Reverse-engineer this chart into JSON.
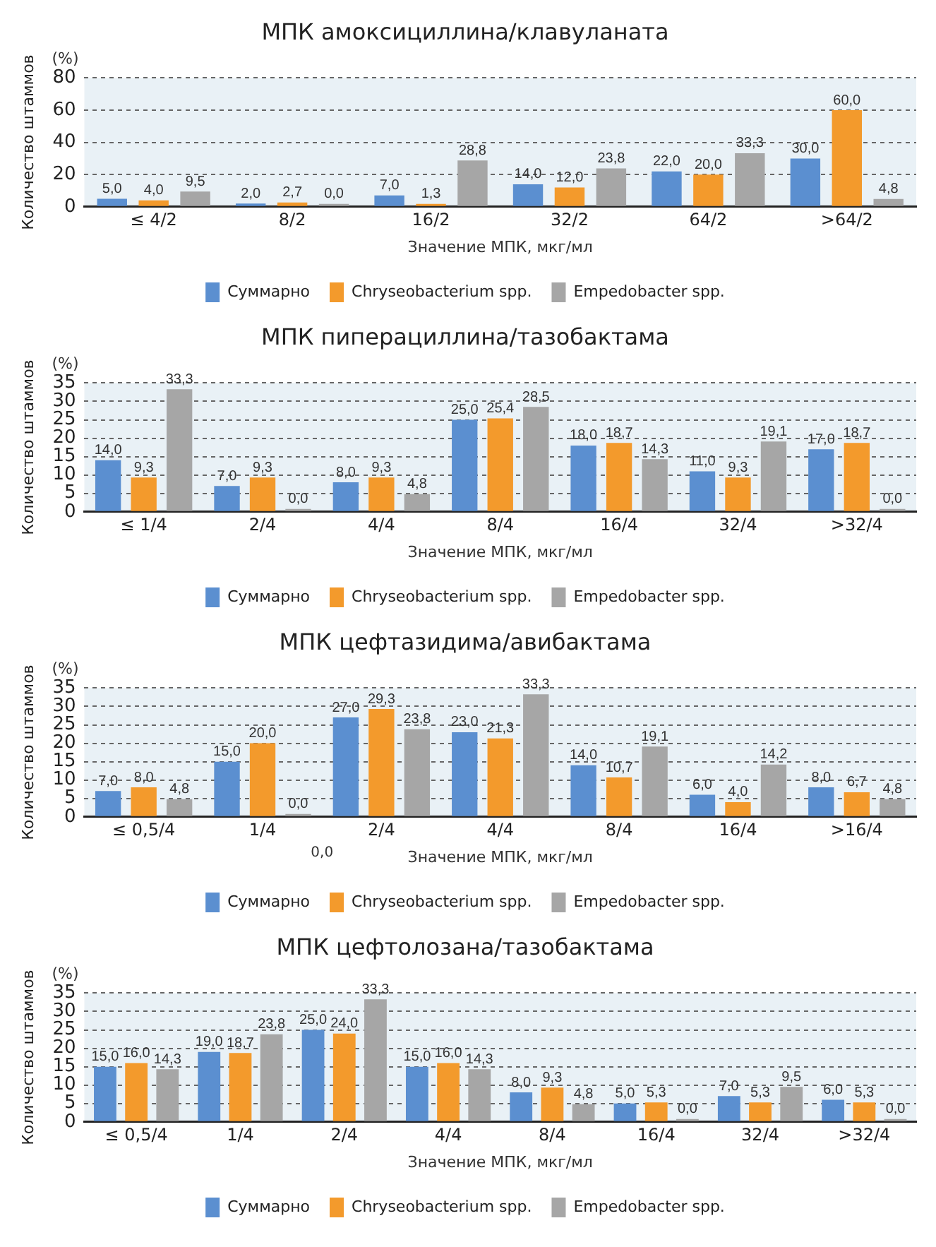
{
  "chart_data": [
    {
      "type": "bar",
      "title": "МПК амоксициллина/клавуланата",
      "xlabel": "Значение МПК, мкг/мл",
      "ylabel": "Количество штаммов",
      "annotations": [
        "(%)"
      ],
      "categories": [
        "≤ 4/2",
        "8/2",
        "16/2",
        "32/2",
        "64/2",
        ">64/2"
      ],
      "series": [
        {
          "name": "Суммарно",
          "color": "#5b8fd0",
          "values": [
            5,
            2,
            7,
            14,
            22,
            30
          ],
          "value_labels": [
            "5,0",
            "2,0",
            "7,0",
            "14,0",
            "22,0",
            "30,0"
          ]
        },
        {
          "name": "Chryseobacterium spp.",
          "color": "#f39a2c",
          "values": [
            4,
            2.7,
            1.3,
            12,
            20,
            60
          ],
          "value_labels": [
            "4,0",
            "2,7",
            "1,3",
            "12,0",
            "20,0",
            "60,0"
          ]
        },
        {
          "name": "Empedobacter spp.",
          "color": "#a6a6a6",
          "values": [
            9.5,
            0,
            28.8,
            23.8,
            33.3,
            4.8
          ],
          "value_labels": [
            "9,5",
            "0,0",
            "28,8",
            "23,8",
            "33,3",
            "4,8"
          ]
        }
      ],
      "ylim": [
        0,
        80
      ],
      "yticks": [
        0,
        20,
        40,
        60,
        80
      ],
      "grid": "y",
      "legend": "bottom"
    },
    {
      "type": "bar",
      "title": "МПК пиперациллина/тазобактама",
      "xlabel": "Значение МПК, мкг/мл",
      "ylabel": "Количество штаммов",
      "annotations": [
        "(%)"
      ],
      "categories": [
        "≤ 1/4",
        "2/4",
        "4/4",
        "8/4",
        "16/4",
        "32/4",
        ">32/4"
      ],
      "series": [
        {
          "name": "Суммарно",
          "color": "#5b8fd0",
          "values": [
            14,
            7,
            8,
            25,
            18,
            11,
            17
          ],
          "value_labels": [
            "14,0",
            "7,0",
            "8,0",
            "25,0",
            "18,0",
            "11,0",
            "17,0"
          ]
        },
        {
          "name": "Chryseobacterium spp.",
          "color": "#f39a2c",
          "values": [
            9.3,
            9.3,
            9.3,
            25.4,
            18.7,
            9.3,
            18.7
          ],
          "value_labels": [
            "9,3",
            "9,3",
            "9,3",
            "25,4",
            "18,7",
            "9,3",
            "18,7"
          ]
        },
        {
          "name": "Empedobacter spp.",
          "color": "#a6a6a6",
          "values": [
            33.3,
            0,
            4.8,
            28.5,
            14.3,
            19.1,
            0
          ],
          "value_labels": [
            "33,3",
            "0,0",
            "4,8",
            "28,5",
            "14,3",
            "19,1",
            "0,0"
          ]
        }
      ],
      "ylim": [
        0,
        35
      ],
      "yticks": [
        0,
        5,
        10,
        15,
        20,
        25,
        30,
        35
      ],
      "grid": "y",
      "legend": "bottom"
    },
    {
      "type": "bar",
      "title": "МПК цефтазидима/авибактама",
      "xlabel": "Значение МПК, мкг/мл",
      "ylabel": "Количество штаммов",
      "annotations": [
        "(%)",
        "0,0"
      ],
      "categories": [
        "≤ 0,5/4",
        "1/4",
        "2/4",
        "4/4",
        "8/4",
        "16/4",
        ">16/4"
      ],
      "series": [
        {
          "name": "Суммарно",
          "color": "#5b8fd0",
          "values": [
            7,
            15,
            27,
            23,
            14,
            6,
            8
          ],
          "value_labels": [
            "7,0",
            "15,0",
            "27,0",
            "23,0",
            "14,0",
            "6,0",
            "8,0"
          ]
        },
        {
          "name": "Chryseobacterium spp.",
          "color": "#f39a2c",
          "values": [
            8,
            20,
            29.3,
            21.3,
            10.7,
            4,
            6.7
          ],
          "value_labels": [
            "8,0",
            "20,0",
            "29,3",
            "21,3",
            "10,7",
            "4,0",
            "6,7"
          ]
        },
        {
          "name": "Empedobacter spp.",
          "color": "#a6a6a6",
          "values": [
            4.8,
            0,
            23.8,
            33.3,
            19.1,
            14.2,
            4.8
          ],
          "value_labels": [
            "4,8",
            "0,0",
            "23,8",
            "33,3",
            "19,1",
            "14,2",
            "4,8"
          ]
        }
      ],
      "ylim": [
        0,
        35
      ],
      "yticks": [
        0,
        5,
        10,
        15,
        20,
        25,
        30,
        35
      ],
      "grid": "y",
      "legend": "bottom"
    },
    {
      "type": "bar",
      "title": "МПК цефтолозана/тазобактама",
      "xlabel": "Значение МПК, мкг/мл",
      "ylabel": "Количество штаммов",
      "annotations": [
        "(%)"
      ],
      "categories": [
        "≤ 0,5/4",
        "1/4",
        "2/4",
        "4/4",
        "8/4",
        "16/4",
        "32/4",
        ">32/4"
      ],
      "series": [
        {
          "name": "Суммарно",
          "color": "#5b8fd0",
          "values": [
            15,
            19,
            25,
            15,
            8,
            5,
            7,
            6
          ],
          "value_labels": [
            "15,0",
            "19,0",
            "25,0",
            "15,0",
            "8,0",
            "5,0",
            "7,0",
            "6,0"
          ]
        },
        {
          "name": "Chryseobacterium spp.",
          "color": "#f39a2c",
          "values": [
            16,
            18.7,
            24,
            16,
            9.3,
            5.3,
            5.3,
            5.3
          ],
          "value_labels": [
            "16,0",
            "18,7",
            "24,0",
            "16,0",
            "9,3",
            "5,3",
            "5,3",
            "5,3"
          ]
        },
        {
          "name": "Empedobacter spp.",
          "color": "#a6a6a6",
          "values": [
            14.3,
            23.8,
            33.3,
            14.3,
            4.8,
            0,
            9.5,
            0
          ],
          "value_labels": [
            "14,3",
            "23,8",
            "33,3",
            "14,3",
            "4,8",
            "0,0",
            "9,5",
            "0,0"
          ]
        }
      ],
      "ylim": [
        0,
        35
      ],
      "yticks": [
        0,
        5,
        10,
        15,
        20,
        25,
        30,
        35
      ],
      "grid": "y",
      "legend": "bottom"
    }
  ]
}
